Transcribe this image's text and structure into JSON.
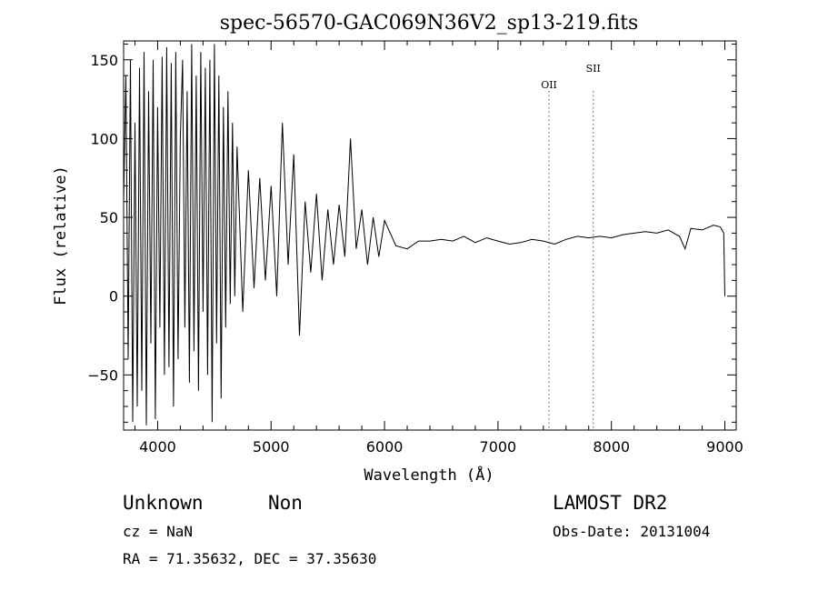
{
  "chart_data": {
    "type": "line",
    "title": "spec-56570-GAC069N36V2_sp13-219.fits",
    "xlabel": "Wavelength (Å)",
    "ylabel": "Flux (relative)",
    "xlim": [
      3700,
      9100
    ],
    "ylim": [
      -85,
      162
    ],
    "xticks": [
      "4000",
      "5000",
      "6000",
      "7000",
      "8000",
      "9000"
    ],
    "yticks": [
      "−50",
      "0",
      "50",
      "100",
      "150"
    ],
    "xtick_values": [
      4000,
      5000,
      6000,
      7000,
      8000,
      9000
    ],
    "ytick_values": [
      -50,
      0,
      50,
      100,
      150
    ],
    "grid": false,
    "line_color": "#000000",
    "lines": [
      {
        "label": "OII",
        "x": 7450
      },
      {
        "label": "SII",
        "x": 7840
      }
    ],
    "series": [
      {
        "x": [
          3700,
          3720,
          3740,
          3760,
          3780,
          3800,
          3820,
          3840,
          3860,
          3880,
          3900,
          3920,
          3940,
          3960,
          3980,
          4000,
          4020,
          4040,
          4060,
          4080,
          4100,
          4120,
          4140,
          4160,
          4180,
          4200,
          4220,
          4240,
          4260,
          4280,
          4300,
          4320,
          4340,
          4360,
          4380,
          4400,
          4420,
          4440,
          4460,
          4480,
          4500,
          4520,
          4540,
          4560,
          4580,
          4600,
          4620,
          4640,
          4660,
          4680,
          4700,
          4750,
          4800,
          4850,
          4900,
          4950,
          5000,
          5050,
          5100,
          5150,
          5200,
          5250,
          5300,
          5350,
          5400,
          5450,
          5500,
          5550,
          5600,
          5650,
          5700,
          5750,
          5800,
          5850,
          5900,
          5950,
          6000,
          6100,
          6200,
          6300,
          6400,
          6500,
          6600,
          6700,
          6800,
          6900,
          7000,
          7100,
          7200,
          7300,
          7400,
          7500,
          7600,
          7700,
          7800,
          7900,
          8000,
          8100,
          8200,
          8300,
          8400,
          8500,
          8600,
          8650,
          8700,
          8800,
          8900,
          8960,
          8990,
          9000
        ],
        "y": [
          60,
          140,
          -40,
          150,
          -80,
          110,
          -70,
          145,
          -60,
          155,
          -82,
          130,
          -30,
          150,
          -78,
          120,
          -20,
          152,
          -50,
          158,
          -45,
          148,
          -70,
          155,
          -40,
          100,
          150,
          -20,
          130,
          -55,
          160,
          -35,
          140,
          -60,
          155,
          -10,
          145,
          -50,
          150,
          -80,
          160,
          -30,
          140,
          -65,
          120,
          -20,
          130,
          -5,
          110,
          0,
          95,
          -10,
          80,
          5,
          75,
          10,
          70,
          0,
          110,
          20,
          90,
          -25,
          60,
          15,
          65,
          10,
          55,
          20,
          58,
          25,
          100,
          30,
          55,
          20,
          50,
          25,
          48,
          32,
          30,
          35,
          35,
          36,
          35,
          38,
          34,
          37,
          35,
          33,
          34,
          36,
          35,
          33,
          36,
          38,
          37,
          38,
          37,
          39,
          40,
          41,
          40,
          42,
          38,
          30,
          43,
          42,
          45,
          44,
          40,
          0
        ]
      }
    ]
  },
  "footer": {
    "object_class": "Unknown",
    "subclass": "Non",
    "survey": "LAMOST DR2",
    "cz": "cz = NaN",
    "obs_date": "Obs-Date: 20131004",
    "coords": "RA =  71.35632, DEC =  37.35630"
  }
}
